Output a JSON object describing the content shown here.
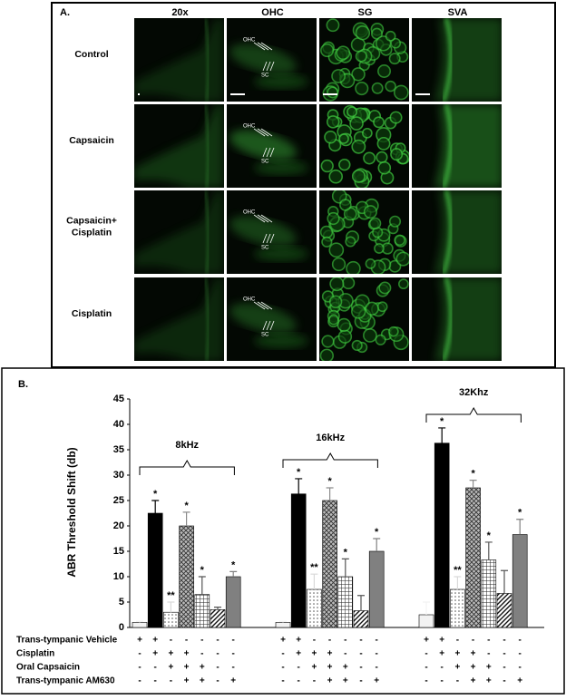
{
  "panel_a": {
    "label": "A.",
    "columns": [
      "20x",
      "OHC",
      "SG",
      "SVA"
    ],
    "rows": [
      [
        "Control"
      ],
      [
        "Capsaicin"
      ],
      [
        "Capsaicin+",
        "Cisplatin"
      ],
      [
        "Cisplatin"
      ]
    ],
    "image_labels": [
      "OHC",
      "SC"
    ]
  },
  "chart_data": {
    "type": "bar",
    "label": "B.",
    "y_label": "ABR Threshold Shift (db)",
    "categories": [
      "8kHz",
      "16kHz",
      "32Khz"
    ],
    "series": [
      {
        "color": "#f2f2f2",
        "values": [
          1,
          1,
          2.5
        ],
        "errors": [
          0.2,
          0.2,
          2.5
        ]
      },
      {
        "color": "#000000",
        "values": [
          22.5,
          26.3,
          36.3
        ],
        "errors": [
          2.5,
          3,
          3
        ],
        "annotations": [
          "*",
          "*",
          "*"
        ]
      },
      {
        "color": "#d9d9d9",
        "pattern": "dots",
        "values": [
          3,
          7.5,
          7.5
        ],
        "errors": [
          2,
          3,
          2.5
        ],
        "annotations": [
          "**",
          "**",
          "**"
        ]
      },
      {
        "color": "#8c8c8c",
        "pattern": "crosshatch",
        "values": [
          20,
          25,
          27.5
        ],
        "errors": [
          2.7,
          2.5,
          1.5
        ],
        "annotations": [
          "*",
          "*",
          "*"
        ]
      },
      {
        "color": "#555555",
        "pattern": "grid",
        "values": [
          6.5,
          10,
          13.3
        ],
        "errors": [
          3.5,
          3.5,
          3.5
        ],
        "annotations": [
          "*",
          "*",
          "*"
        ]
      },
      {
        "color": "#555555",
        "pattern": "diagonal",
        "values": [
          3.5,
          3.3,
          6.7
        ],
        "errors": [
          0.5,
          3,
          4.5
        ]
      },
      {
        "color": "#808080",
        "values": [
          10,
          15,
          18.3
        ],
        "errors": [
          1,
          2.5,
          3
        ],
        "annotations": [
          "*",
          "*",
          "*"
        ]
      }
    ],
    "ylim": [
      0,
      45
    ],
    "yticks": [
      0,
      5,
      10,
      15,
      20,
      25,
      30,
      35,
      40,
      45
    ],
    "conditions": [
      {
        "label": "Trans-tympanic Vehicle",
        "signs": [
          "+",
          "+",
          "-",
          "-",
          "-",
          "-",
          "-"
        ]
      },
      {
        "label": "Cisplatin",
        "signs": [
          "-",
          "+",
          "+",
          "+",
          "-",
          "-",
          "-"
        ]
      },
      {
        "label": "Oral Capsaicin",
        "signs": [
          "-",
          "-",
          "+",
          "+",
          "+",
          "-",
          "-"
        ]
      },
      {
        "label": "Trans-tympanic AM630",
        "signs": [
          "-",
          "-",
          "-",
          "+",
          "+",
          "-",
          "+"
        ]
      }
    ]
  }
}
